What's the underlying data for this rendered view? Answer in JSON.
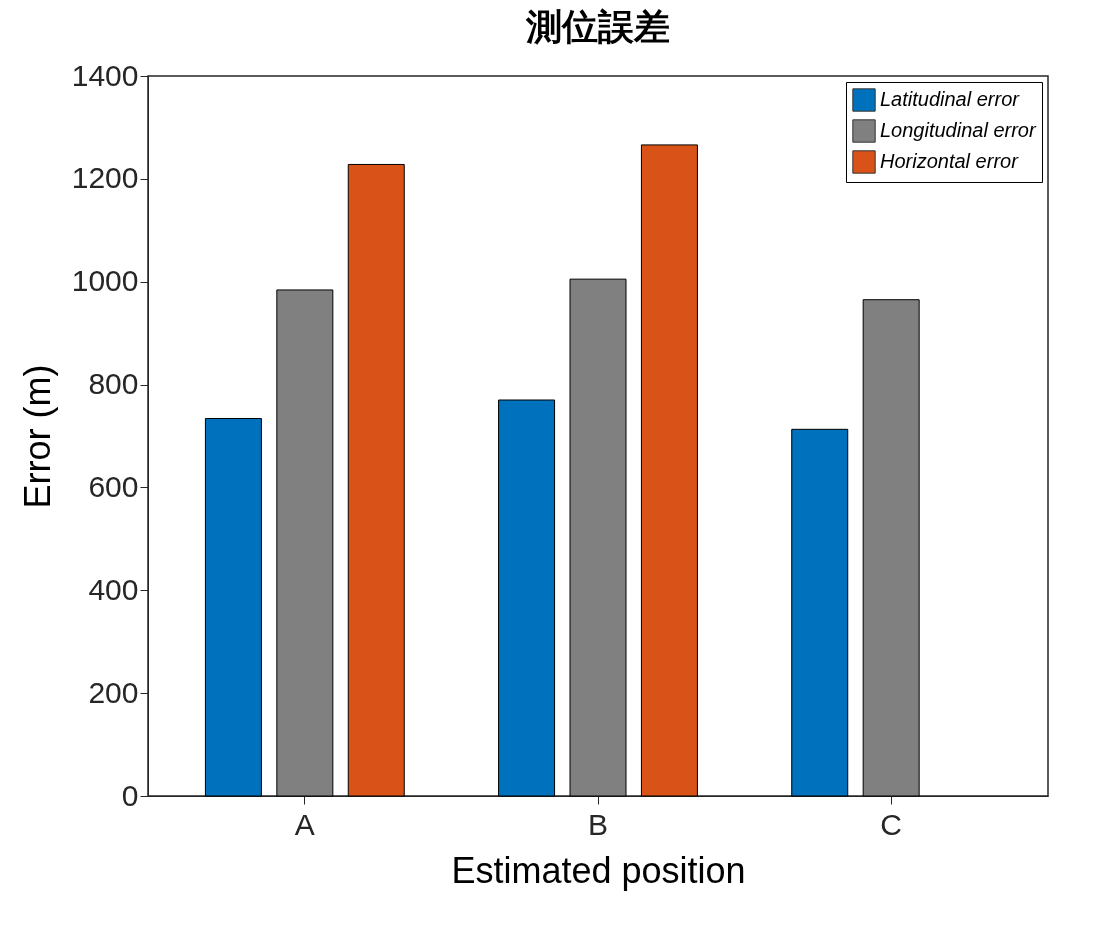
{
  "chart_data": {
    "type": "bar",
    "title": "測位誤差",
    "xlabel": "Estimated position",
    "ylabel": "Error (m)",
    "categories": [
      "A",
      "B",
      "C"
    ],
    "series": [
      {
        "name": "Latitudinal error",
        "color": "#0072bd",
        "values": [
          734,
          770,
          713
        ]
      },
      {
        "name": "Longitudinal error",
        "color": "#808080",
        "values": [
          984,
          1005,
          965
        ]
      },
      {
        "name": "Horizontal error",
        "color": "#d95319",
        "values": [
          1228,
          1266,
          null
        ]
      }
    ],
    "ylim": [
      0,
      1400
    ],
    "yticks": [
      0,
      200,
      400,
      600,
      800,
      1000,
      1200,
      1400
    ],
    "grid": false,
    "legend": "top right"
  }
}
